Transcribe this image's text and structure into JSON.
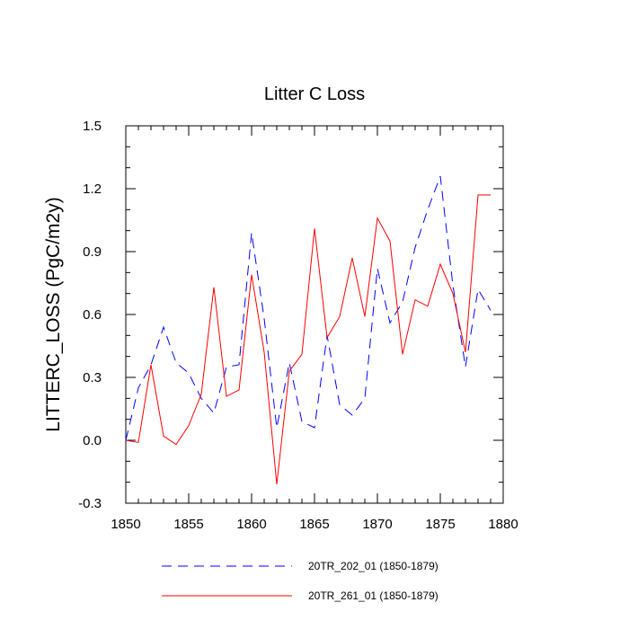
{
  "chart_data": {
    "type": "line",
    "title": "Litter C Loss",
    "xlabel": "",
    "ylabel": "LITTERC_LOSS  (PgC/m2y)",
    "xlim": [
      1850,
      1880
    ],
    "ylim": [
      -0.3,
      1.5
    ],
    "xticks": [
      1850,
      1855,
      1860,
      1865,
      1870,
      1875,
      1880
    ],
    "xtick_labels": [
      "1850",
      "1855",
      "1860",
      "1865",
      "1870",
      "1875",
      "1880"
    ],
    "yticks": [
      -0.3,
      0.0,
      0.3,
      0.6,
      0.9,
      1.2,
      1.5
    ],
    "ytick_labels": [
      "-0.3",
      "0.0",
      "0.3",
      "0.6",
      "0.9",
      "1.2",
      "1.5"
    ],
    "x": [
      1850,
      1851,
      1852,
      1853,
      1854,
      1855,
      1856,
      1857,
      1858,
      1859,
      1860,
      1861,
      1862,
      1863,
      1864,
      1865,
      1866,
      1867,
      1868,
      1869,
      1870,
      1871,
      1872,
      1873,
      1874,
      1875,
      1876,
      1877,
      1878,
      1879
    ],
    "series": [
      {
        "name": "20TR_202_01 (1850-1879)",
        "color": "#0000ff",
        "dash": "dashed",
        "values": [
          0.0,
          0.25,
          0.36,
          0.54,
          0.37,
          0.32,
          0.2,
          0.13,
          0.35,
          0.36,
          0.99,
          0.58,
          0.06,
          0.37,
          0.09,
          0.06,
          0.5,
          0.17,
          0.12,
          0.2,
          0.82,
          0.56,
          0.66,
          0.92,
          1.1,
          1.26,
          0.74,
          0.35,
          0.72,
          0.62
        ]
      },
      {
        "name": "20TR_261_01 (1850-1879)",
        "color": "#ff0000",
        "dash": "solid",
        "values": [
          0.0,
          -0.01,
          0.36,
          0.02,
          -0.02,
          0.07,
          0.22,
          0.73,
          0.21,
          0.24,
          0.79,
          0.42,
          -0.21,
          0.33,
          0.41,
          1.01,
          0.49,
          0.59,
          0.87,
          0.59,
          1.06,
          0.95,
          0.41,
          0.67,
          0.64,
          0.84,
          0.7,
          0.42,
          1.17,
          1.17
        ]
      }
    ]
  }
}
